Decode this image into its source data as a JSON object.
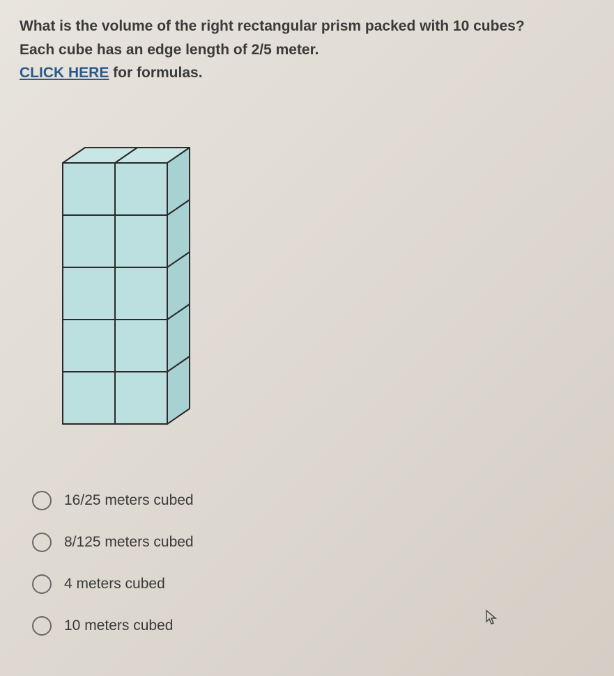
{
  "question": {
    "line1": "What is the volume of the right rectangular prism packed with 10 cubes?",
    "line2": "Each cube has an edge length of 2/5 meter.",
    "link_text": "CLICK HERE",
    "after_link": " for formulas."
  },
  "prism": {
    "cols": 2,
    "rows": 5,
    "depth": 1,
    "front_fill": "#bce0e0",
    "top_fill": "#c8e6e6",
    "side_fill": "#a8d2d2",
    "stroke": "#2a2a2a",
    "stroke_width": 2
  },
  "options": [
    {
      "label": "16/25 meters cubed",
      "selected": false
    },
    {
      "label": "8/125 meters cubed",
      "selected": false
    },
    {
      "label": "4 meters cubed",
      "selected": false
    },
    {
      "label": "10 meters cubed",
      "selected": false
    }
  ],
  "colors": {
    "text": "#3a3a3a",
    "link": "#2a5a8a",
    "radio_border": "#6a6a6a"
  }
}
